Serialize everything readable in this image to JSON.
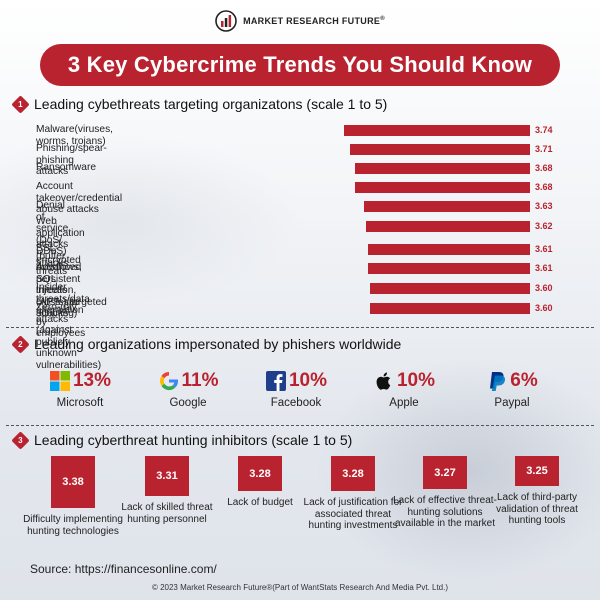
{
  "brand": {
    "name": "MARKET RESEARCH FUTURE",
    "reg": "®"
  },
  "title": "3 Key Cybercrime Trends You Should Know",
  "colors": {
    "accent": "#b8232f"
  },
  "sections": [
    {
      "number": "1",
      "title": "Leading cybethreats targeting organizatons (scale 1 to 5)"
    },
    {
      "number": "2",
      "title": "Leading organizations impersonated by phishers worldwide"
    },
    {
      "number": "3",
      "title": "Leading cyberthreat hunting inhibitors (scale 1 to 5)"
    }
  ],
  "chart_data": [
    {
      "type": "bar",
      "orientation": "horizontal",
      "title": "Leading cybethreats targeting organizatons (scale 1 to 5)",
      "categories": [
        "Malware(viruses, worms, trojans)",
        "Phishing/spear-phishing attacks",
        "Ransomware",
        "Account takeover/credential abuse attacks",
        "Denial of service (DoS/ DDoS) attacks",
        "Web application attacks (buffer overflows, SQL injection,\ncross-site scripting)",
        "SSL-encrypted threats",
        "Advanced persistent threats (APTs)/targeted attacks",
        "Insider threats/data alternation by employees",
        "Zero-day attacks (against publicly unknown vulnerabilities)"
      ],
      "values": [
        3.74,
        3.71,
        3.68,
        3.68,
        3.63,
        3.62,
        3.61,
        3.61,
        3.6,
        3.6
      ],
      "value_labels": [
        "3.74",
        "3.71",
        "3.68",
        "3.68",
        "3.63",
        "3.62",
        "3.61",
        "3.61",
        "3.60",
        "3.60"
      ]
    },
    {
      "type": "table",
      "title": "Leading organizations impersonated by phishers worldwide",
      "items": [
        {
          "name": "Microsoft",
          "value": "13%",
          "icon": "microsoft-logo-icon"
        },
        {
          "name": "Google",
          "value": "11%",
          "icon": "google-logo-icon"
        },
        {
          "name": "Facebook",
          "value": "10%",
          "icon": "facebook-logo-icon"
        },
        {
          "name": "Apple",
          "value": "10%",
          "icon": "apple-logo-icon"
        },
        {
          "name": "Paypal",
          "value": "6%",
          "icon": "paypal-logo-icon"
        }
      ]
    },
    {
      "type": "bar",
      "orientation": "vertical",
      "title": "Leading cyberthreat hunting inhibitors (scale 1 to 5)",
      "categories": [
        "Difficulty implementing hunting technologies",
        "Lack of skilled threat hunting personnel",
        "Lack of budget",
        "Lack of justification for associated threat hunting investments",
        "Lack of effective threat-hunting solutions available in the market",
        "Lack of third-party validation of threat hunting tools"
      ],
      "values": [
        3.38,
        3.31,
        3.28,
        3.28,
        3.27,
        3.25
      ],
      "value_labels": [
        "3.38",
        "3.31",
        "3.28",
        "3.28",
        "3.27",
        "3.25"
      ]
    }
  ],
  "source": "Source: https://financesonline.com/",
  "copyright": "© 2023 Market Research Future®(Part of WantStats Research And Media Pvt. Ltd.)"
}
